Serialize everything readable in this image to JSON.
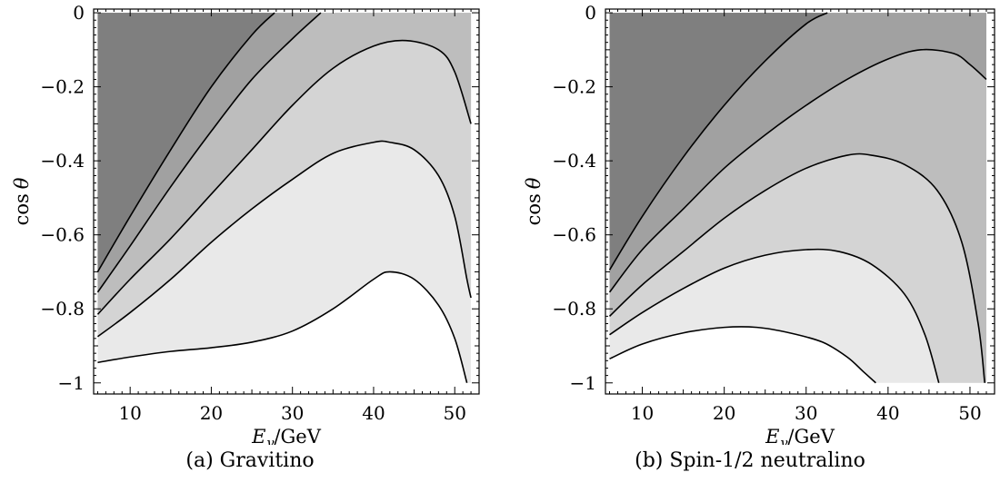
{
  "chart_data": [
    {
      "type": "contour",
      "caption": "(a) Gravitino",
      "xlabel": "E_γ/GeV",
      "ylabel": "cos θ",
      "xlim": [
        5.5,
        53
      ],
      "ylim": [
        -1.03,
        0.01
      ],
      "xticks": [
        10,
        20,
        30,
        40,
        50
      ],
      "yticks": [
        0,
        -0.2,
        -0.4,
        -0.6,
        -0.8,
        -1
      ],
      "ytick_labels": [
        "0",
        "−0.2",
        "−0.4",
        "−0.6",
        "−0.8",
        "−1"
      ],
      "grid": false,
      "plot_region": {
        "x": [
          6,
          52
        ],
        "y": [
          -1,
          0
        ]
      },
      "contours": [
        {
          "points": [
            [
              6,
              -0.7
            ],
            [
              10,
              -0.55
            ],
            [
              15,
              -0.37
            ],
            [
              20,
              -0.2
            ],
            [
              25,
              -0.06
            ],
            [
              27.8,
              0.0
            ]
          ]
        },
        {
          "points": [
            [
              6,
              -0.755
            ],
            [
              10,
              -0.63
            ],
            [
              15,
              -0.47
            ],
            [
              20,
              -0.32
            ],
            [
              25,
              -0.18
            ],
            [
              30,
              -0.07
            ],
            [
              33.5,
              0.0
            ]
          ]
        },
        {
          "points": [
            [
              6,
              -0.815
            ],
            [
              10,
              -0.72
            ],
            [
              15,
              -0.61
            ],
            [
              20,
              -0.49
            ],
            [
              25,
              -0.37
            ],
            [
              30,
              -0.25
            ],
            [
              35,
              -0.15
            ],
            [
              40,
              -0.09
            ],
            [
              44,
              -0.075
            ],
            [
              48,
              -0.1
            ],
            [
              50,
              -0.16
            ],
            [
              52,
              -0.3
            ]
          ]
        },
        {
          "points": [
            [
              6,
              -0.875
            ],
            [
              10,
              -0.81
            ],
            [
              15,
              -0.72
            ],
            [
              20,
              -0.62
            ],
            [
              25,
              -0.53
            ],
            [
              30,
              -0.45
            ],
            [
              35,
              -0.38
            ],
            [
              40,
              -0.35
            ],
            [
              42,
              -0.35
            ],
            [
              45,
              -0.37
            ],
            [
              48,
              -0.44
            ],
            [
              50,
              -0.55
            ],
            [
              51.5,
              -0.72
            ],
            [
              52,
              -0.77
            ]
          ]
        },
        {
          "points": [
            [
              6,
              -0.945
            ],
            [
              10,
              -0.93
            ],
            [
              15,
              -0.915
            ],
            [
              20,
              -0.905
            ],
            [
              25,
              -0.89
            ],
            [
              30,
              -0.86
            ],
            [
              35,
              -0.8
            ],
            [
              40,
              -0.72
            ],
            [
              42,
              -0.7
            ],
            [
              45,
              -0.72
            ],
            [
              48,
              -0.79
            ],
            [
              50,
              -0.88
            ],
            [
              51.5,
              -1.0
            ]
          ]
        }
      ],
      "fill_colors": [
        "#7f7f7f",
        "#a1a1a1",
        "#bdbdbd",
        "#d4d4d4",
        "#e9e9e9",
        "#ffffff"
      ]
    },
    {
      "type": "contour",
      "caption": "(b) Spin-1/2 neutralino",
      "xlabel": "E_γ/GeV",
      "ylabel": "cos θ",
      "xlim": [
        5.5,
        53
      ],
      "ylim": [
        -1.03,
        0.01
      ],
      "xticks": [
        10,
        20,
        30,
        40,
        50
      ],
      "yticks": [
        0,
        -0.2,
        -0.4,
        -0.6,
        -0.8,
        -1
      ],
      "ytick_labels": [
        "0",
        "−0.2",
        "−0.4",
        "−0.6",
        "−0.8",
        "−1"
      ],
      "grid": false,
      "plot_region": {
        "x": [
          6,
          52
        ],
        "y": [
          -1,
          0
        ]
      },
      "contours": [
        {
          "points": [
            [
              6,
              -0.695
            ],
            [
              10,
              -0.55
            ],
            [
              15,
              -0.39
            ],
            [
              20,
              -0.25
            ],
            [
              25,
              -0.13
            ],
            [
              30,
              -0.03
            ],
            [
              32.6,
              0.0
            ]
          ]
        },
        {
          "points": [
            [
              6,
              -0.755
            ],
            [
              10,
              -0.64
            ],
            [
              15,
              -0.53
            ],
            [
              20,
              -0.42
            ],
            [
              25,
              -0.33
            ],
            [
              30,
              -0.25
            ],
            [
              35,
              -0.18
            ],
            [
              40,
              -0.125
            ],
            [
              44,
              -0.1
            ],
            [
              48,
              -0.11
            ],
            [
              50,
              -0.14
            ],
            [
              52,
              -0.18
            ]
          ]
        },
        {
          "points": [
            [
              6,
              -0.82
            ],
            [
              10,
              -0.735
            ],
            [
              15,
              -0.645
            ],
            [
              20,
              -0.555
            ],
            [
              25,
              -0.48
            ],
            [
              30,
              -0.42
            ],
            [
              35,
              -0.385
            ],
            [
              38,
              -0.385
            ],
            [
              42,
              -0.41
            ],
            [
              46,
              -0.48
            ],
            [
              49,
              -0.62
            ],
            [
              51,
              -0.84
            ],
            [
              51.8,
              -1.0
            ]
          ]
        },
        {
          "points": [
            [
              6,
              -0.87
            ],
            [
              10,
              -0.81
            ],
            [
              15,
              -0.745
            ],
            [
              20,
              -0.69
            ],
            [
              25,
              -0.655
            ],
            [
              30,
              -0.64
            ],
            [
              34,
              -0.645
            ],
            [
              38,
              -0.68
            ],
            [
              42,
              -0.76
            ],
            [
              44.5,
              -0.87
            ],
            [
              46.2,
              -1.0
            ]
          ]
        },
        {
          "points": [
            [
              6,
              -0.935
            ],
            [
              10,
              -0.895
            ],
            [
              15,
              -0.865
            ],
            [
              20,
              -0.85
            ],
            [
              24,
              -0.85
            ],
            [
              28,
              -0.865
            ],
            [
              32,
              -0.89
            ],
            [
              35,
              -0.93
            ],
            [
              37,
              -0.97
            ],
            [
              38.5,
              -1.0
            ]
          ]
        }
      ],
      "fill_colors": [
        "#7f7f7f",
        "#a1a1a1",
        "#bdbdbd",
        "#d4d4d4",
        "#e9e9e9",
        "#ffffff"
      ]
    }
  ]
}
